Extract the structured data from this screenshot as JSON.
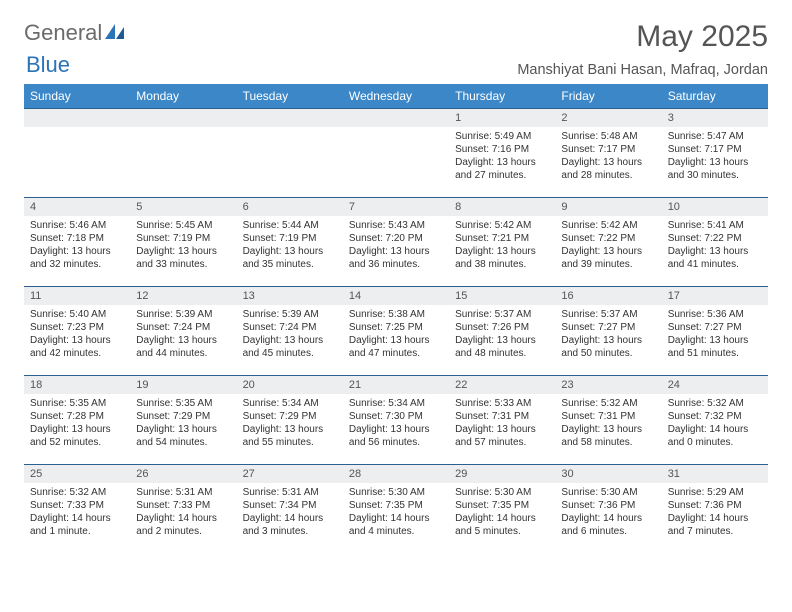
{
  "logo": {
    "text1": "General",
    "text2": "Blue"
  },
  "title": "May 2025",
  "location": "Manshiyat Bani Hasan, Mafraq, Jordan",
  "colors": {
    "header_bg": "#3b87c8",
    "header_text": "#ffffff",
    "week_border": "#2b5f8f",
    "daynum_bg": "#eceeef",
    "body_text": "#333333",
    "title_text": "#555555",
    "logo_gray": "#6b6b6b",
    "logo_blue": "#2b74b8"
  },
  "dow": [
    "Sunday",
    "Monday",
    "Tuesday",
    "Wednesday",
    "Thursday",
    "Friday",
    "Saturday"
  ],
  "weeks": [
    [
      {
        "n": "",
        "sr": "",
        "ss": "",
        "dl": ""
      },
      {
        "n": "",
        "sr": "",
        "ss": "",
        "dl": ""
      },
      {
        "n": "",
        "sr": "",
        "ss": "",
        "dl": ""
      },
      {
        "n": "",
        "sr": "",
        "ss": "",
        "dl": ""
      },
      {
        "n": "1",
        "sr": "Sunrise: 5:49 AM",
        "ss": "Sunset: 7:16 PM",
        "dl": "Daylight: 13 hours and 27 minutes."
      },
      {
        "n": "2",
        "sr": "Sunrise: 5:48 AM",
        "ss": "Sunset: 7:17 PM",
        "dl": "Daylight: 13 hours and 28 minutes."
      },
      {
        "n": "3",
        "sr": "Sunrise: 5:47 AM",
        "ss": "Sunset: 7:17 PM",
        "dl": "Daylight: 13 hours and 30 minutes."
      }
    ],
    [
      {
        "n": "4",
        "sr": "Sunrise: 5:46 AM",
        "ss": "Sunset: 7:18 PM",
        "dl": "Daylight: 13 hours and 32 minutes."
      },
      {
        "n": "5",
        "sr": "Sunrise: 5:45 AM",
        "ss": "Sunset: 7:19 PM",
        "dl": "Daylight: 13 hours and 33 minutes."
      },
      {
        "n": "6",
        "sr": "Sunrise: 5:44 AM",
        "ss": "Sunset: 7:19 PM",
        "dl": "Daylight: 13 hours and 35 minutes."
      },
      {
        "n": "7",
        "sr": "Sunrise: 5:43 AM",
        "ss": "Sunset: 7:20 PM",
        "dl": "Daylight: 13 hours and 36 minutes."
      },
      {
        "n": "8",
        "sr": "Sunrise: 5:42 AM",
        "ss": "Sunset: 7:21 PM",
        "dl": "Daylight: 13 hours and 38 minutes."
      },
      {
        "n": "9",
        "sr": "Sunrise: 5:42 AM",
        "ss": "Sunset: 7:22 PM",
        "dl": "Daylight: 13 hours and 39 minutes."
      },
      {
        "n": "10",
        "sr": "Sunrise: 5:41 AM",
        "ss": "Sunset: 7:22 PM",
        "dl": "Daylight: 13 hours and 41 minutes."
      }
    ],
    [
      {
        "n": "11",
        "sr": "Sunrise: 5:40 AM",
        "ss": "Sunset: 7:23 PM",
        "dl": "Daylight: 13 hours and 42 minutes."
      },
      {
        "n": "12",
        "sr": "Sunrise: 5:39 AM",
        "ss": "Sunset: 7:24 PM",
        "dl": "Daylight: 13 hours and 44 minutes."
      },
      {
        "n": "13",
        "sr": "Sunrise: 5:39 AM",
        "ss": "Sunset: 7:24 PM",
        "dl": "Daylight: 13 hours and 45 minutes."
      },
      {
        "n": "14",
        "sr": "Sunrise: 5:38 AM",
        "ss": "Sunset: 7:25 PM",
        "dl": "Daylight: 13 hours and 47 minutes."
      },
      {
        "n": "15",
        "sr": "Sunrise: 5:37 AM",
        "ss": "Sunset: 7:26 PM",
        "dl": "Daylight: 13 hours and 48 minutes."
      },
      {
        "n": "16",
        "sr": "Sunrise: 5:37 AM",
        "ss": "Sunset: 7:27 PM",
        "dl": "Daylight: 13 hours and 50 minutes."
      },
      {
        "n": "17",
        "sr": "Sunrise: 5:36 AM",
        "ss": "Sunset: 7:27 PM",
        "dl": "Daylight: 13 hours and 51 minutes."
      }
    ],
    [
      {
        "n": "18",
        "sr": "Sunrise: 5:35 AM",
        "ss": "Sunset: 7:28 PM",
        "dl": "Daylight: 13 hours and 52 minutes."
      },
      {
        "n": "19",
        "sr": "Sunrise: 5:35 AM",
        "ss": "Sunset: 7:29 PM",
        "dl": "Daylight: 13 hours and 54 minutes."
      },
      {
        "n": "20",
        "sr": "Sunrise: 5:34 AM",
        "ss": "Sunset: 7:29 PM",
        "dl": "Daylight: 13 hours and 55 minutes."
      },
      {
        "n": "21",
        "sr": "Sunrise: 5:34 AM",
        "ss": "Sunset: 7:30 PM",
        "dl": "Daylight: 13 hours and 56 minutes."
      },
      {
        "n": "22",
        "sr": "Sunrise: 5:33 AM",
        "ss": "Sunset: 7:31 PM",
        "dl": "Daylight: 13 hours and 57 minutes."
      },
      {
        "n": "23",
        "sr": "Sunrise: 5:32 AM",
        "ss": "Sunset: 7:31 PM",
        "dl": "Daylight: 13 hours and 58 minutes."
      },
      {
        "n": "24",
        "sr": "Sunrise: 5:32 AM",
        "ss": "Sunset: 7:32 PM",
        "dl": "Daylight: 14 hours and 0 minutes."
      }
    ],
    [
      {
        "n": "25",
        "sr": "Sunrise: 5:32 AM",
        "ss": "Sunset: 7:33 PM",
        "dl": "Daylight: 14 hours and 1 minute."
      },
      {
        "n": "26",
        "sr": "Sunrise: 5:31 AM",
        "ss": "Sunset: 7:33 PM",
        "dl": "Daylight: 14 hours and 2 minutes."
      },
      {
        "n": "27",
        "sr": "Sunrise: 5:31 AM",
        "ss": "Sunset: 7:34 PM",
        "dl": "Daylight: 14 hours and 3 minutes."
      },
      {
        "n": "28",
        "sr": "Sunrise: 5:30 AM",
        "ss": "Sunset: 7:35 PM",
        "dl": "Daylight: 14 hours and 4 minutes."
      },
      {
        "n": "29",
        "sr": "Sunrise: 5:30 AM",
        "ss": "Sunset: 7:35 PM",
        "dl": "Daylight: 14 hours and 5 minutes."
      },
      {
        "n": "30",
        "sr": "Sunrise: 5:30 AM",
        "ss": "Sunset: 7:36 PM",
        "dl": "Daylight: 14 hours and 6 minutes."
      },
      {
        "n": "31",
        "sr": "Sunrise: 5:29 AM",
        "ss": "Sunset: 7:36 PM",
        "dl": "Daylight: 14 hours and 7 minutes."
      }
    ]
  ]
}
